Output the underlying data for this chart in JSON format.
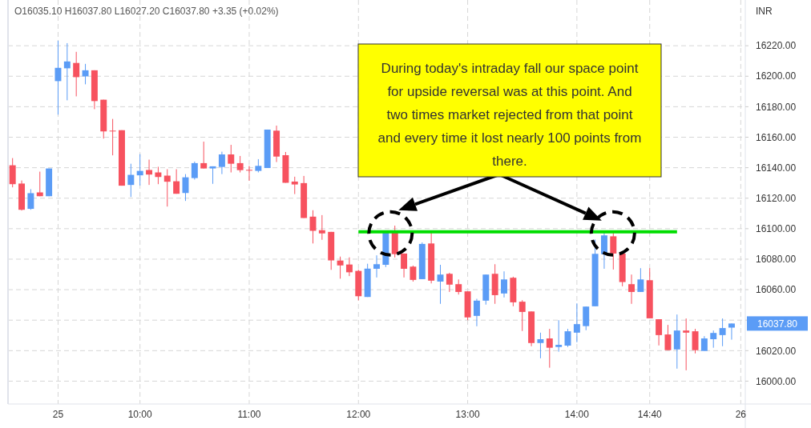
{
  "chart_data": {
    "type": "candlestick",
    "title": "O16035.10 H16037.80 L16027.20 C16037.80 +3.35 (+0.02%)",
    "ylabel": "INR",
    "categories": [
      null,
      null,
      null,
      null,
      null,
      "25",
      null,
      null,
      null,
      null,
      null,
      null,
      null,
      null,
      "10:00",
      null,
      null,
      null,
      null,
      null,
      null,
      null,
      null,
      null,
      null,
      null,
      "11:00",
      null,
      null,
      null,
      null,
      null,
      null,
      null,
      null,
      null,
      null,
      null,
      "12:00",
      null,
      null,
      null,
      null,
      null,
      null,
      null,
      null,
      null,
      null,
      null,
      "13:00",
      null,
      null,
      null,
      null,
      null,
      null,
      null,
      null,
      null,
      null,
      null,
      "14:00",
      null,
      null,
      null,
      null,
      null,
      null,
      null,
      "14:40",
      null,
      null,
      null,
      null,
      null,
      null,
      null,
      null,
      null,
      "26"
    ],
    "ohlc": [
      [
        16141.6,
        16146.3,
        16127.1,
        16129.2
      ],
      [
        16129.6,
        16131.6,
        16111.9,
        16112.4
      ],
      [
        16113,
        16125.9,
        16112.4,
        16123.3
      ],
      [
        16123.8,
        16137.4,
        16121.3,
        16121.3
      ],
      [
        16121.3,
        16139.5,
        16121.3,
        16139.5
      ],
      [
        16196.8,
        16223.3,
        16174.8,
        16205.5
      ],
      [
        16205.2,
        16221.7,
        16184.2,
        16209.7
      ],
      [
        16208.7,
        16216,
        16186.8,
        16199.4
      ],
      [
        16199.9,
        16208.1,
        16194.7,
        16203.9
      ],
      [
        16203.9,
        16203.9,
        16178.4,
        16183.7
      ],
      [
        16184.6,
        16184.6,
        16159.1,
        16163.8
      ],
      [
        16164.3,
        16172,
        16148.1,
        16164.1
      ],
      [
        16164.6,
        16164.6,
        16128.2,
        16128.2
      ],
      [
        16128.7,
        16142.6,
        16120.8,
        16135.3
      ],
      [
        16135,
        16148.9,
        16128.3,
        16137.9
      ],
      [
        16138.5,
        16145.3,
        16128.7,
        16135.5
      ],
      [
        16136.9,
        16140.6,
        16129.2,
        16133.9
      ],
      [
        16134.8,
        16139,
        16114.5,
        16130.8
      ],
      [
        16131.1,
        16139,
        16122.9,
        16122.9
      ],
      [
        16123.4,
        16135.8,
        16118.2,
        16133.7
      ],
      [
        16133.2,
        16144,
        16132.2,
        16143
      ],
      [
        16143,
        16157.1,
        16139.5,
        16139.5
      ],
      [
        16139.5,
        16140.9,
        16129.4,
        16140.9
      ],
      [
        16140.5,
        16150.5,
        16135.8,
        16148.7
      ],
      [
        16148.7,
        16155,
        16136.9,
        16142.6
      ],
      [
        16143,
        16147.7,
        16136.9,
        16138.4
      ],
      [
        16138.6,
        16141.2,
        16131.5,
        16138.4
      ],
      [
        16137.9,
        16145.6,
        16136.9,
        16141.2
      ],
      [
        16139.8,
        16165,
        16139.8,
        16165
      ],
      [
        16164.3,
        16167.6,
        16143.7,
        16147.3
      ],
      [
        16148.2,
        16150.3,
        16130.1,
        16130.1
      ],
      [
        16130.9,
        16134.1,
        16122.7,
        16129
      ],
      [
        16129.9,
        16134.6,
        16107,
        16107
      ],
      [
        16107.9,
        16112.1,
        16090.3,
        16098.6
      ],
      [
        16099,
        16108.9,
        16092.7,
        16096.9
      ],
      [
        16097.9,
        16097.9,
        16073,
        16079.2
      ],
      [
        16079.1,
        16081.7,
        16067.2,
        16075.9
      ],
      [
        16076.5,
        16081.2,
        16068.9,
        16071.4
      ],
      [
        16072.3,
        16073.1,
        16053,
        16055.7
      ],
      [
        16055.2,
        16077,
        16055.2,
        16073.8
      ],
      [
        16073.7,
        16082.5,
        16068,
        16076.7
      ],
      [
        16076.3,
        16097.3,
        16074.8,
        16097.3
      ],
      [
        16097.3,
        16102,
        16081.1,
        16083.3
      ],
      [
        16083.7,
        16083.7,
        16068,
        16073.7
      ],
      [
        16075.1,
        16075.8,
        16065.3,
        16066.4
      ],
      [
        16066.9,
        16091,
        16066.9,
        16090
      ],
      [
        16090.3,
        16097.3,
        16064.1,
        16065.9
      ],
      [
        16065.3,
        16076.3,
        16050.7,
        16069.9
      ],
      [
        16070.4,
        16071.1,
        16058.5,
        16063.3
      ],
      [
        16063.6,
        16066.7,
        16056.8,
        16058.5
      ],
      [
        16058.9,
        16058.9,
        16040,
        16041.8
      ],
      [
        16042.8,
        16054,
        16036,
        16052.8
      ],
      [
        16052.8,
        16069.9,
        16050.2,
        16069.9
      ],
      [
        16070.4,
        16076.7,
        16050.7,
        16056.4
      ],
      [
        16057.5,
        16072,
        16054.9,
        16066.7
      ],
      [
        16067.8,
        16068.5,
        16049.1,
        16051.7
      ],
      [
        16052.1,
        16053.1,
        16032.9,
        16045.4
      ],
      [
        16045.7,
        16045.7,
        16022.9,
        16025
      ],
      [
        16025,
        16031.8,
        16015,
        16027.5
      ],
      [
        16028,
        16034.3,
        16008.8,
        16021.9
      ],
      [
        16022.4,
        16040,
        16019.3,
        16023.8
      ],
      [
        16023.3,
        16034.3,
        16022.4,
        16032.7
      ],
      [
        16031.8,
        16051,
        16025.5,
        16037.4
      ],
      [
        16036.1,
        16048.9,
        16033.4,
        16048.9
      ],
      [
        16049.1,
        16092.9,
        16049.1,
        16083.5
      ],
      [
        16083.3,
        16097.3,
        16073.7,
        16095.6
      ],
      [
        16095,
        16097.3,
        16073.2,
        16083.7
      ],
      [
        16083.7,
        16083.7,
        16062.2,
        16065
      ],
      [
        16063.6,
        16069.9,
        16050.7,
        16058.5
      ],
      [
        16058.5,
        16074.1,
        16058.5,
        16066.7
      ],
      [
        16066.2,
        16074.1,
        16041.2,
        16041.2
      ],
      [
        16040.6,
        16040.6,
        16023.4,
        16030.2
      ],
      [
        16030.6,
        16036.9,
        16020.3,
        16020.3
      ],
      [
        16020.8,
        16043.7,
        16008.2,
        16033.2
      ],
      [
        16033.2,
        16041.1,
        16007.1,
        16031.8
      ],
      [
        16032.7,
        16034.3,
        16018.2,
        16020.3
      ],
      [
        16019.8,
        16029.5,
        16019.8,
        16028
      ],
      [
        16027.5,
        16033.2,
        16021.9,
        16031.6
      ],
      [
        16030.2,
        16041.1,
        16022.9,
        16034.8
      ],
      [
        16035.1,
        16037.8,
        16027.2,
        16037.8
      ],
      null
    ],
    "colors": [
      "#f7525f",
      "#f7525f",
      "#5b9cf6",
      "#f7525f",
      "#5b9cf6",
      "#5b9cf6",
      "#5b9cf6",
      "#f7525f",
      "#5b9cf6",
      "#f7525f",
      "#f7525f",
      "#f7525f",
      "#f7525f",
      "#5b9cf6",
      "#5b9cf6",
      "#f7525f",
      "#f7525f",
      "#f7525f",
      "#f7525f",
      "#5b9cf6",
      "#5b9cf6",
      "#f7525f",
      "#5b9cf6",
      "#5b9cf6",
      "#f7525f",
      "#f7525f",
      "#f7525f",
      "#5b9cf6",
      "#5b9cf6",
      "#f7525f",
      "#f7525f",
      "#f7525f",
      "#f7525f",
      "#f7525f",
      "#f7525f",
      "#f7525f",
      "#f7525f",
      "#f7525f",
      "#f7525f",
      "#5b9cf6",
      "#5b9cf6",
      "#5b9cf6",
      "#f7525f",
      "#f7525f",
      "#f7525f",
      "#5b9cf6",
      "#f7525f",
      "#5b9cf6",
      "#f7525f",
      "#f7525f",
      "#f7525f",
      "#5b9cf6",
      "#5b9cf6",
      "#f7525f",
      "#5b9cf6",
      "#f7525f",
      "#f7525f",
      "#f7525f",
      "#5b9cf6",
      "#f7525f",
      "#5b9cf6",
      "#5b9cf6",
      "#5b9cf6",
      "#5b9cf6",
      "#5b9cf6",
      "#5b9cf6",
      "#f7525f",
      "#f7525f",
      "#f7525f",
      "#5b9cf6",
      "#f7525f",
      "#f7525f",
      "#f7525f",
      "#5b9cf6",
      "#f7525f",
      "#f7525f",
      "#5b9cf6",
      "#5b9cf6",
      "#5b9cf6",
      "#5b9cf6",
      null
    ],
    "series": [
      {
        "type": "line",
        "color": "#00dd00",
        "values": [
          null,
          null,
          null,
          null,
          null,
          null,
          null,
          null,
          null,
          null,
          null,
          null,
          null,
          null,
          null,
          null,
          null,
          null,
          null,
          null,
          null,
          null,
          null,
          null,
          null,
          null,
          null,
          null,
          null,
          null,
          null,
          null,
          null,
          null,
          null,
          null,
          null,
          null,
          16098,
          16098,
          16098,
          16098,
          16098,
          16098,
          16098,
          16098,
          16098,
          16098,
          16098,
          16098,
          16098,
          16098,
          16098,
          16098,
          16098,
          16098,
          16098,
          16098,
          16098,
          16098,
          16098,
          16098,
          16098,
          16098,
          16098,
          16098,
          16098,
          16098,
          16098,
          16098,
          16098,
          16098,
          16098,
          16098,
          null,
          null,
          null,
          null,
          null,
          null,
          null
        ]
      }
    ],
    "ylim": [
      15985,
      16250
    ],
    "yticks": [
      {
        "value": 16000,
        "label": "16000.00"
      },
      {
        "value": 16020,
        "label": "16020.00"
      },
      {
        "value": 16040,
        "label": null
      },
      {
        "value": 16060,
        "label": "16060.00"
      },
      {
        "value": 16080,
        "label": "16080.00"
      },
      {
        "value": 16100,
        "label": "16100.00"
      },
      {
        "value": 16120,
        "label": "16120.00"
      },
      {
        "value": 16140,
        "label": "16140.00"
      },
      {
        "value": 16160,
        "label": "16160.00"
      },
      {
        "value": 16180,
        "label": "16180.00"
      },
      {
        "value": 16200,
        "label": "16200.00"
      },
      {
        "value": 16220,
        "label": "16220.00"
      }
    ],
    "grid": true,
    "annotations": [
      "During today's intraday fall our space point for upside reversal was at this point. And two times market rejected from that point and every time it lost nearly 100 points from there.",
      "16037.80"
    ]
  }
}
